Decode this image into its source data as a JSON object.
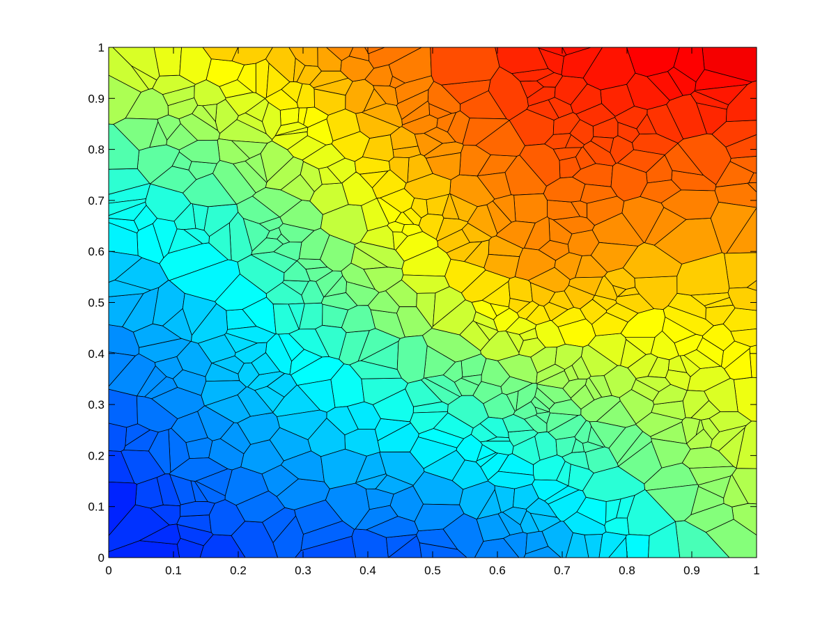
{
  "chart_data": {
    "type": "heatmap",
    "subtype": "voronoi-tessellation",
    "title": "",
    "xlabel": "",
    "ylabel": "",
    "xlim": [
      0,
      1
    ],
    "ylim": [
      0,
      1
    ],
    "x_ticks": [
      "0",
      "0.1",
      "0.2",
      "0.3",
      "0.4",
      "0.5",
      "0.6",
      "0.7",
      "0.8",
      "0.9",
      "1"
    ],
    "y_ticks": [
      "0",
      "0.1",
      "0.2",
      "0.3",
      "0.4",
      "0.5",
      "0.6",
      "0.7",
      "0.8",
      "0.9",
      "1"
    ],
    "grid": false,
    "legend": "none",
    "colormap": "jet",
    "color_scale": {
      "low_color": "#00008f",
      "mid_color": "#80ff80",
      "high_color": "#800000"
    },
    "cell_count_approx": 620,
    "value_trend": "cell colour rises from dark blue at lower-left to dark red at upper-right"
  }
}
